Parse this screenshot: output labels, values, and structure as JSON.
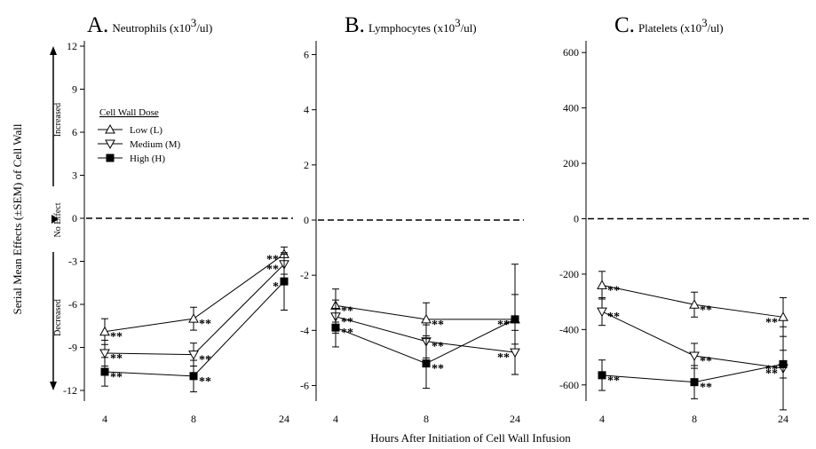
{
  "figure": {
    "ylabel": "Serial Mean Effects (±SEM) of Cell Wall",
    "xlabel": "Hours After Initiation of Cell Wall Infusion",
    "annotations": {
      "increased": "Increased",
      "no_effect": "No Effect",
      "decreased": "Decreased"
    }
  },
  "legend": {
    "title": "Cell Wall Dose",
    "entries": [
      {
        "label": "Low (L)",
        "marker": "triangle-up-open"
      },
      {
        "label": "Medium (M)",
        "marker": "triangle-down-open"
      },
      {
        "label": "High (H)",
        "marker": "square-filled"
      }
    ]
  },
  "chart_data": [
    {
      "type": "line",
      "panel": "A",
      "title_letter": "A.",
      "title_text": "Neutrophils (x10",
      "title_sup": "3",
      "title_unit": "/ul)",
      "x": [
        4,
        8,
        24
      ],
      "x_ticks": [
        "4",
        "8",
        "24"
      ],
      "ylim": [
        -12,
        12
      ],
      "y_ticks": [
        12,
        9,
        6,
        3,
        0,
        -3,
        -6,
        -9,
        -12
      ],
      "series": [
        {
          "name": "Low (L)",
          "marker": "triangle-up-open",
          "values": [
            -7.9,
            -7.0,
            -2.5
          ],
          "sem": [
            0.9,
            0.8,
            0.5
          ],
          "stars": [
            "**",
            "**",
            "**"
          ]
        },
        {
          "name": "Medium (M)",
          "marker": "triangle-down-open",
          "values": [
            -9.4,
            -9.5,
            -3.2
          ],
          "sem": [
            0.9,
            0.8,
            0.7
          ],
          "stars": [
            "**",
            "**",
            "**"
          ]
        },
        {
          "name": "High (H)",
          "marker": "square-filled",
          "values": [
            -10.7,
            -11.0,
            -4.4
          ],
          "sem": [
            1.0,
            1.1,
            2.0
          ],
          "stars": [
            "**",
            "**",
            "*"
          ]
        }
      ]
    },
    {
      "type": "line",
      "panel": "B",
      "title_letter": "B.",
      "title_text": "Lymphocytes (x10",
      "title_sup": "3",
      "title_unit": "/ul)",
      "x": [
        4,
        8,
        24
      ],
      "x_ticks": [
        "4",
        "8",
        "24"
      ],
      "ylim": [
        -6.5,
        6.5
      ],
      "y_ticks": [
        6,
        4,
        2,
        0,
        -2,
        -4,
        -6
      ],
      "series": [
        {
          "name": "Low (L)",
          "marker": "triangle-up-open",
          "values": [
            -3.1,
            -3.6,
            -3.6
          ],
          "sem": [
            0.6,
            0.6,
            2.0
          ],
          "stars": [
            "**",
            "**",
            "*"
          ]
        },
        {
          "name": "Medium (M)",
          "marker": "triangle-down-open",
          "values": [
            -3.5,
            -4.4,
            -4.8
          ],
          "sem": [
            0.6,
            0.6,
            0.8
          ],
          "stars": [
            "**",
            "**",
            "**"
          ]
        },
        {
          "name": "High (H)",
          "marker": "square-filled",
          "values": [
            -3.9,
            -5.2,
            -3.6
          ],
          "sem": [
            0.7,
            0.9,
            0.9
          ],
          "stars": [
            "**",
            "**",
            "**"
          ]
        }
      ]
    },
    {
      "type": "line",
      "panel": "C",
      "title_letter": "C.",
      "title_text": "Platelets (x10",
      "title_sup": "3",
      "title_unit": "/ul)",
      "x": [
        4,
        8,
        24
      ],
      "x_ticks": [
        "4",
        "8",
        "24"
      ],
      "ylim": [
        -700,
        700
      ],
      "y_ticks": [
        600,
        400,
        200,
        0,
        -200,
        -400,
        -600
      ],
      "series": [
        {
          "name": "Low (L)",
          "marker": "triangle-up-open",
          "values": [
            -240,
            -310,
            -355
          ],
          "sem": [
            50,
            45,
            70
          ],
          "stars": [
            "**",
            "**",
            "**"
          ]
        },
        {
          "name": "Medium (M)",
          "marker": "triangle-down-open",
          "values": [
            -335,
            -495,
            -540
          ],
          "sem": [
            50,
            45,
            150
          ],
          "stars": [
            "**",
            "**",
            "**"
          ]
        },
        {
          "name": "High (H)",
          "marker": "square-filled",
          "values": [
            -565,
            -590,
            -525
          ],
          "sem": [
            55,
            60,
            50
          ],
          "stars": [
            "**",
            "**",
            "**"
          ]
        }
      ]
    }
  ]
}
